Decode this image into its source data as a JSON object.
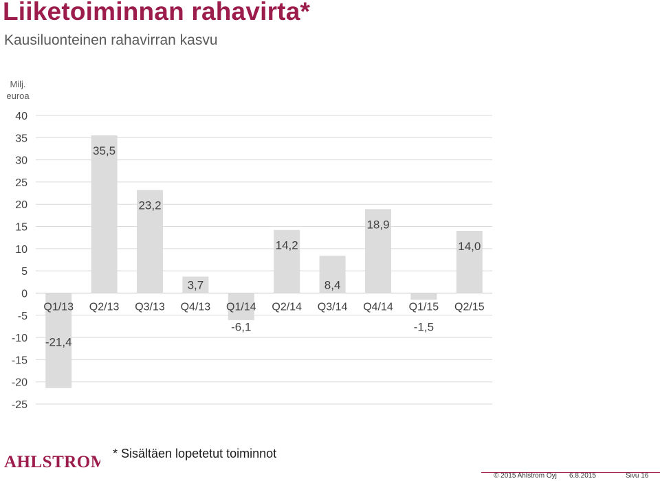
{
  "header": {
    "title": "Liiketoiminnan rahavirta*",
    "subtitle": "Kausiluonteinen rahavirran kasvu"
  },
  "chart_data": {
    "type": "bar",
    "unit_label": "Milj. euroa",
    "categories": [
      "Q1/13",
      "Q2/13",
      "Q3/13",
      "Q4/13",
      "Q1/14",
      "Q2/14",
      "Q3/14",
      "Q4/14",
      "Q1/15",
      "Q2/15"
    ],
    "values": [
      -21.4,
      35.5,
      23.2,
      3.7,
      -6.1,
      14.2,
      8.4,
      18.9,
      -1.5,
      14.0
    ],
    "value_labels": [
      "-21,4",
      "35,5",
      "23,2",
      "3,7",
      "-6,1",
      "14,2",
      "8,4",
      "18,9",
      "-1,5",
      "14,0"
    ],
    "ylim": [
      -25,
      40
    ],
    "yticks": [
      40,
      35,
      30,
      25,
      20,
      15,
      10,
      5,
      0,
      -5,
      -10,
      -15,
      -20,
      -25
    ],
    "grid": true,
    "bar_color": "#dcdcdc"
  },
  "footnote": "* Sisältäen lopetetut toiminnot",
  "logo": {
    "text": "AHLSTROM",
    "color": "#9c1c4b"
  },
  "footer": {
    "copyright": "© 2015 Ahlstrom Oyj",
    "date": "6.8.2015",
    "page": "Sivu 16"
  }
}
